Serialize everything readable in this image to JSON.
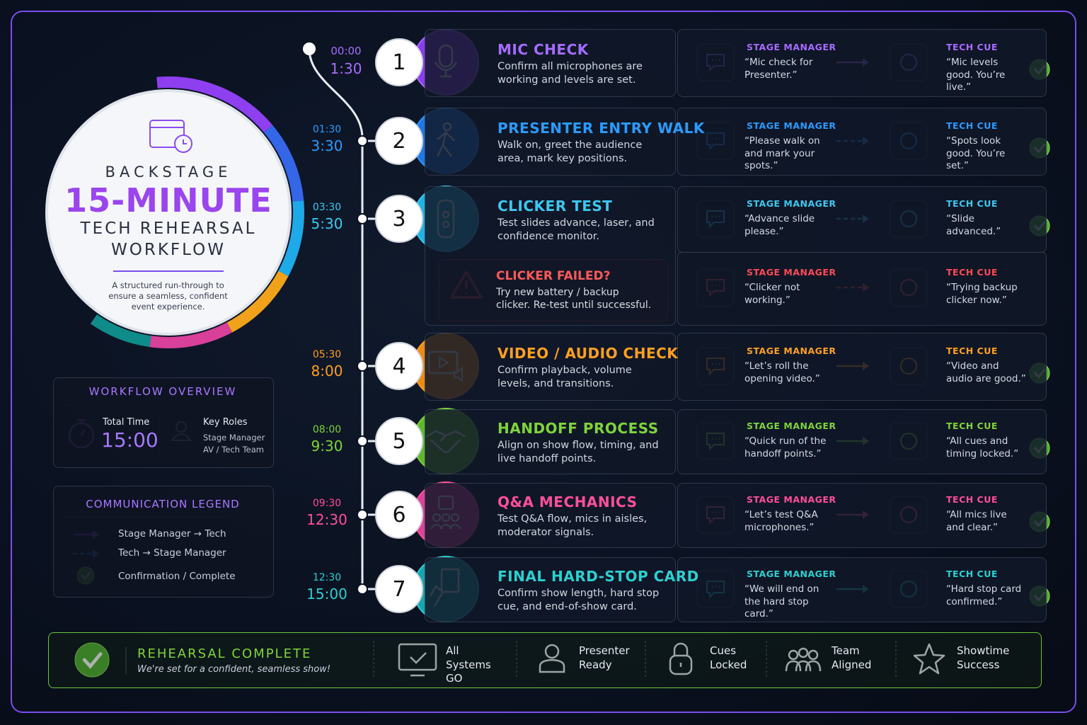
{
  "header": {
    "eyebrow": "BACKSTAGE",
    "title": "15-MINUTE",
    "subtitle_lines": [
      "TECH REHEARSAL",
      "WORKFLOW"
    ],
    "description": "A structured run-through to ensure a seamless, confident event experience."
  },
  "overview": {
    "title": "WORKFLOW OVERVIEW",
    "total_time_label": "Total Time",
    "total_time": "15:00",
    "roles_label": "Key Roles",
    "roles": [
      "Stage Manager",
      "AV / Tech Team"
    ]
  },
  "legend": {
    "title": "COMMUNICATION LEGEND",
    "items": [
      "Stage Manager → Tech",
      "Tech → Stage Manager",
      "Confirmation / Complete"
    ]
  },
  "steps": [
    {
      "number": "1",
      "start": "00:00",
      "end": "1:30",
      "title": "MIC CHECK",
      "description": "Confirm all microphones are working and levels are set.",
      "sm_label": "STAGE MANAGER",
      "sm_quote": "“Mic check for Presenter.”",
      "tech_label": "TECH CUE",
      "tech_quote": "“Mic levels good. You’re live.”"
    },
    {
      "number": "2",
      "start": "01:30",
      "end": "3:30",
      "title": "PRESENTER ENTRY WALK",
      "description": "Walk on, greet the audience area, mark key positions.",
      "sm_label": "STAGE MANAGER",
      "sm_quote": "“Please walk on and mark your spots.”",
      "tech_label": "TECH CUE",
      "tech_quote": "“Spots look good. You’re set.”"
    },
    {
      "number": "3",
      "start": "03:30",
      "end": "5:30",
      "title": "CLICKER TEST",
      "description": "Test slides advance, laser, and confidence monitor.",
      "sm_label": "STAGE MANAGER",
      "sm_quote": "“Advance slide please.”",
      "tech_label": "TECH CUE",
      "tech_quote": "“Slide advanced.”"
    },
    {
      "number": "4",
      "start": "05:30",
      "end": "8:00",
      "title": "VIDEO / AUDIO CHECK",
      "description": "Confirm playback, volume levels, and transitions.",
      "sm_label": "STAGE MANAGER",
      "sm_quote": "“Let’s roll the opening video.”",
      "tech_label": "TECH CUE",
      "tech_quote": "“Video and audio are good.”"
    },
    {
      "number": "5",
      "start": "08:00",
      "end": "9:30",
      "title": "HANDOFF PROCESS",
      "description": "Align on show flow, timing, and live handoff points.",
      "sm_label": "STAGE MANAGER",
      "sm_quote": "“Quick run of the handoff points.”",
      "tech_label": "TECH CUE",
      "tech_quote": "“All cues and timing locked.”"
    },
    {
      "number": "6",
      "start": "09:30",
      "end": "12:30",
      "title": "Q&A MECHANICS",
      "description": "Test Q&A flow, mics in aisles, moderator signals.",
      "sm_label": "STAGE MANAGER",
      "sm_quote": "“Let’s test Q&A microphones.”",
      "tech_label": "TECH CUE",
      "tech_quote": "“All mics live and clear.”"
    },
    {
      "number": "7",
      "start": "12:30",
      "end": "15:00",
      "title": "FINAL HARD-STOP CARD",
      "description": "Confirm show length, hard stop cue, and end-of-show card.",
      "sm_label": "STAGE MANAGER",
      "sm_quote": "“We will end on the hard stop card.”",
      "tech_label": "TECH CUE",
      "tech_quote": "“Hard stop card confirmed.”"
    }
  ],
  "contingency": {
    "title": "CLICKER FAILED?",
    "description": "Try new battery / backup clicker. Re-test until successful.",
    "sm_label": "STAGE MANAGER",
    "sm_quote": "“Clicker not working.”",
    "tech_label": "TECH CUE",
    "tech_quote": "“Trying backup clicker now.”"
  },
  "footer": {
    "title": "REHEARSAL COMPLETE",
    "subtitle": "We're set for a confident, seamless show!",
    "items": [
      "All Systems GO",
      "Presenter Ready",
      "Cues Locked",
      "Team Aligned",
      "Showtime Success"
    ]
  }
}
